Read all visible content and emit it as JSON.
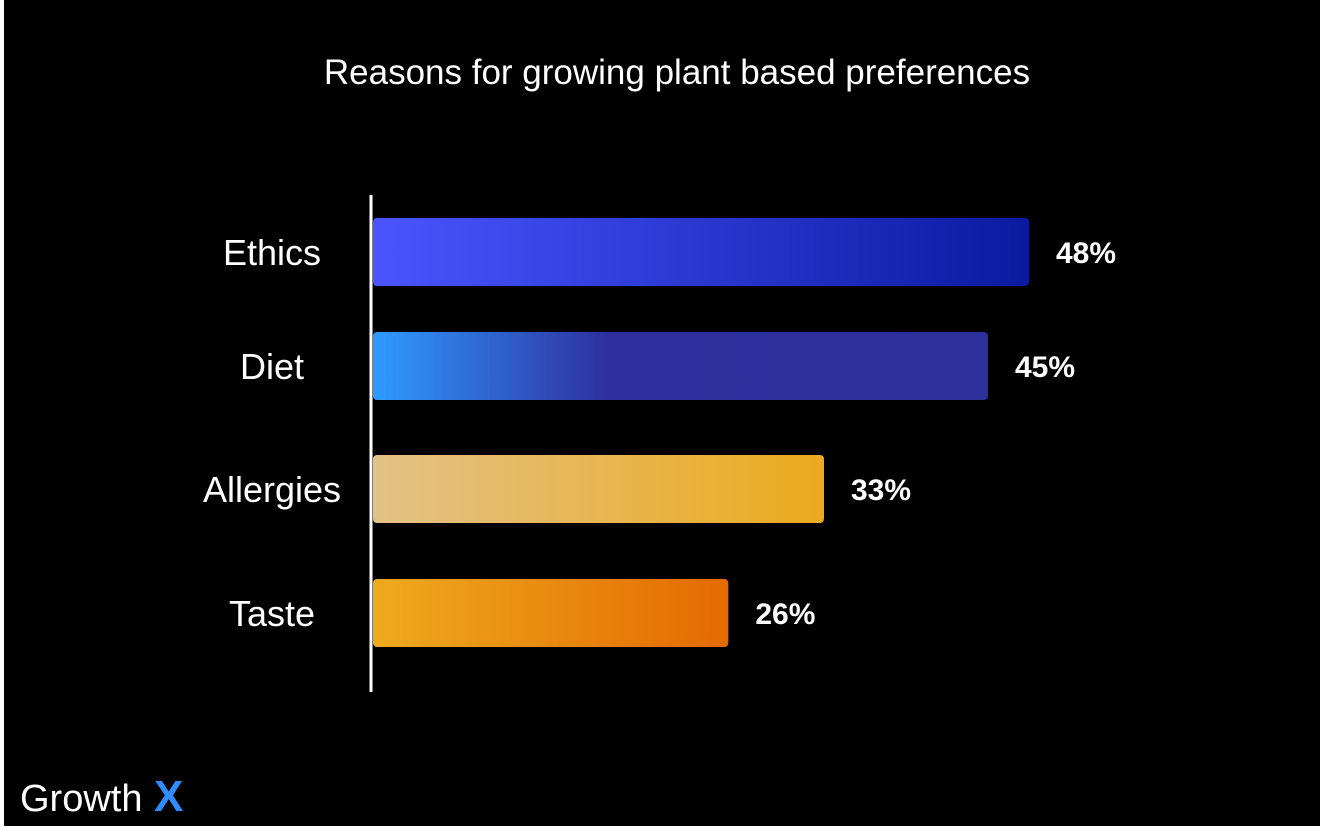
{
  "chart_data": {
    "type": "bar",
    "orientation": "horizontal",
    "title": "Reasons for growing plant based preferences",
    "categories": [
      "Ethics",
      "Diet",
      "Allergies",
      "Taste"
    ],
    "values": [
      48,
      45,
      33,
      26
    ],
    "value_labels": [
      "48%",
      "45%",
      "33%",
      "26%"
    ],
    "unit": "%",
    "xlim": [
      0,
      48
    ],
    "grid": false,
    "legend": "none",
    "colors": [
      {
        "start": "#4a55ff",
        "end": "#0a1aa0"
      },
      {
        "start": "#2f9bff",
        "mid": "#2f2fa0",
        "end": "#2e2f9a"
      },
      {
        "start": "#e3c287",
        "end": "#ecaa1e"
      },
      {
        "start": "#eeaa1f",
        "end": "#e46a00"
      }
    ]
  },
  "brand": {
    "logo_text": "Growth",
    "logo_mark": "X",
    "logo_mark_color": "#2f8bff"
  }
}
